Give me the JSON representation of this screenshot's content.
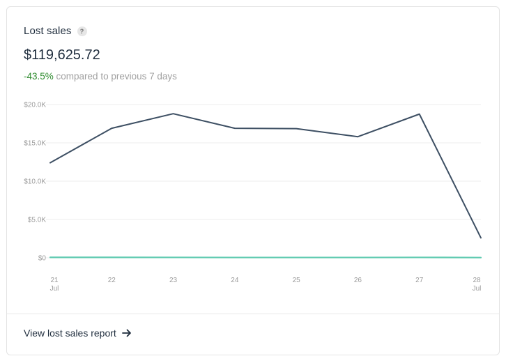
{
  "card": {
    "title": "Lost sales",
    "help_icon": "question-icon",
    "help_glyph": "?",
    "value": "$119,625.72",
    "change_pct": "-43.5%",
    "change_text": " compared to previous 7 days",
    "footer_link": "View lost sales report",
    "footer_icon": "arrow-right-icon"
  },
  "colors": {
    "main_series": "#3d4f63",
    "secondary_series": "#5fcab0",
    "positive_change": "#2e8b2e",
    "grid": "#ececec"
  },
  "chart_data": {
    "type": "line",
    "x": [
      "21",
      "22",
      "23",
      "24",
      "25",
      "26",
      "27",
      "28"
    ],
    "x_sublabels": [
      "Jul",
      "",
      "",
      "",
      "",
      "",
      "",
      "Jul"
    ],
    "y_tick_labels": [
      "$0",
      "$5.0K",
      "$10.0K",
      "$15.0K",
      "$20.0K"
    ],
    "y_ticks": [
      0,
      5000,
      10000,
      15000,
      20000
    ],
    "ylim": [
      0,
      20000
    ],
    "grid": true,
    "series": [
      {
        "values": [
          12400,
          16900,
          18800,
          16900,
          16850,
          15800,
          18750,
          2600
        ]
      },
      {
        "values": [
          60,
          60,
          50,
          40,
          40,
          40,
          50,
          30
        ]
      }
    ]
  }
}
